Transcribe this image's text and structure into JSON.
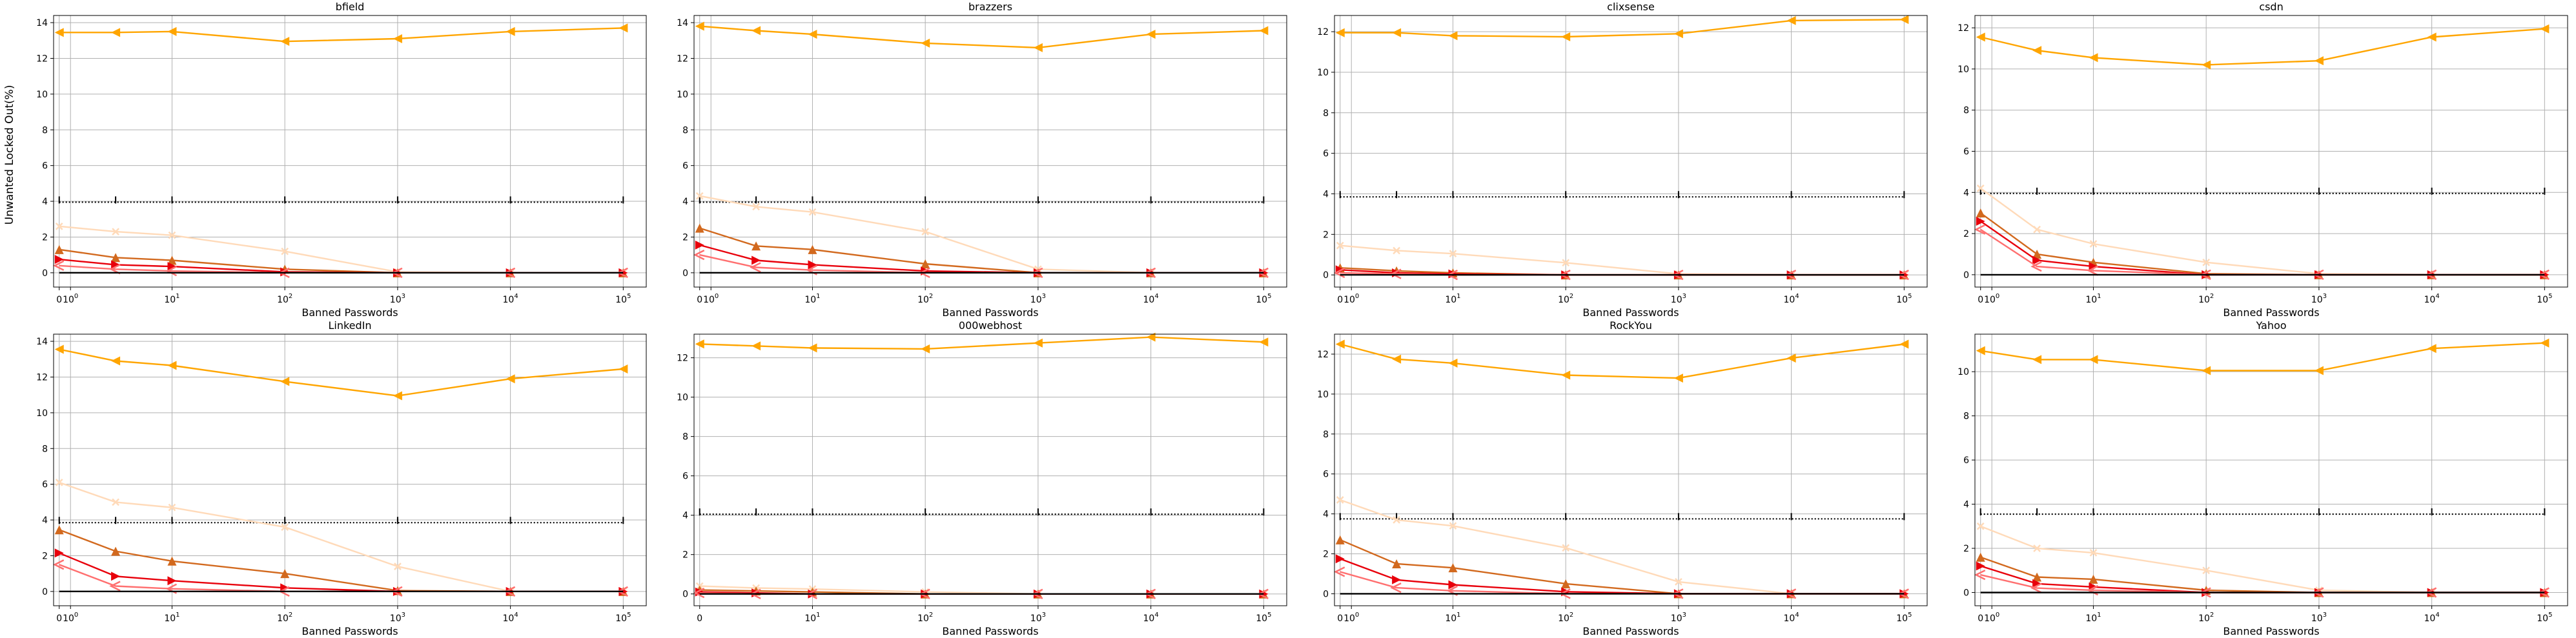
{
  "figure": {
    "ylabel": "Unwanted Locked Out(%)"
  },
  "colors": {
    "black": "#000000",
    "orange": "#ffa500",
    "dark_orange": "#d2691e",
    "red": "#e8000b",
    "light_red": "#ff6f6f",
    "peach": "#ffdab9",
    "grid": "#b0b0b0"
  },
  "chart_data": [
    {
      "type": "line",
      "title": "bfield",
      "xlabel": "Banned Passwords",
      "xscale": "symlog",
      "x": [
        0,
        5,
        10,
        100,
        1000,
        10000,
        100000
      ],
      "xticks": [
        "0",
        "10^0",
        "10^1",
        "10^2",
        "10^3",
        "10^4",
        "10^5"
      ],
      "ylim": [
        -0.8,
        14.4
      ],
      "yticks": [
        0,
        2,
        4,
        6,
        8,
        10,
        12,
        14
      ],
      "grid": true,
      "series": [
        {
          "color": "orange",
          "marker": "left-triangle",
          "values": [
            13.45,
            13.45,
            13.5,
            12.95,
            13.1,
            13.5,
            13.7
          ]
        },
        {
          "color": "black",
          "marker": "tick",
          "style": "dotted",
          "values": [
            3.95,
            3.95,
            3.95,
            3.95,
            3.95,
            3.95,
            3.95
          ]
        },
        {
          "color": "peach",
          "marker": "x",
          "values": [
            2.6,
            2.3,
            2.1,
            1.2,
            0.05,
            0.0,
            0.0
          ]
        },
        {
          "color": "dark_orange",
          "marker": "up-triangle",
          "values": [
            1.3,
            0.85,
            0.7,
            0.2,
            0.0,
            0.0,
            0.0
          ]
        },
        {
          "color": "red",
          "marker": "right-triangle",
          "values": [
            0.75,
            0.45,
            0.35,
            0.05,
            0.0,
            0.0,
            0.0
          ]
        },
        {
          "color": "light_red",
          "marker": "left-caret",
          "values": [
            0.4,
            0.2,
            0.1,
            0.0,
            0.0,
            0.0,
            0.0
          ]
        },
        {
          "color": "black",
          "marker": "none",
          "values": [
            0,
            0,
            0,
            0,
            0,
            0,
            0
          ]
        }
      ]
    },
    {
      "type": "line",
      "title": "brazzers",
      "xlabel": "Banned Passwords",
      "xscale": "symlog",
      "x": [
        0,
        5,
        10,
        100,
        1000,
        10000,
        100000
      ],
      "xticks": [
        "0",
        "10^0",
        "10^1",
        "10^2",
        "10^3",
        "10^4",
        "10^5"
      ],
      "ylim": [
        -0.8,
        14.4
      ],
      "yticks": [
        0,
        2,
        4,
        6,
        8,
        10,
        12,
        14
      ],
      "grid": true,
      "series": [
        {
          "color": "orange",
          "marker": "left-triangle",
          "values": [
            13.8,
            13.55,
            13.35,
            12.85,
            12.6,
            13.35,
            13.55
          ]
        },
        {
          "color": "black",
          "marker": "tick",
          "style": "dotted",
          "values": [
            3.95,
            3.95,
            3.95,
            3.95,
            3.95,
            3.95,
            3.95
          ]
        },
        {
          "color": "peach",
          "marker": "x",
          "values": [
            4.3,
            3.7,
            3.4,
            2.3,
            0.2,
            0.0,
            0.0
          ]
        },
        {
          "color": "dark_orange",
          "marker": "up-triangle",
          "values": [
            2.5,
            1.5,
            1.3,
            0.5,
            0.0,
            0.0,
            0.0
          ]
        },
        {
          "color": "red",
          "marker": "right-triangle",
          "values": [
            1.55,
            0.7,
            0.45,
            0.1,
            0.0,
            0.0,
            0.0
          ]
        },
        {
          "color": "light_red",
          "marker": "left-caret",
          "values": [
            1.0,
            0.3,
            0.15,
            0.0,
            0.0,
            0.0,
            0.0
          ]
        },
        {
          "color": "black",
          "marker": "none",
          "values": [
            0,
            0,
            0,
            0,
            0,
            0,
            0
          ]
        }
      ]
    },
    {
      "type": "line",
      "title": "clixsense",
      "xlabel": "Banned Passwords",
      "xscale": "symlog",
      "x": [
        0,
        5,
        10,
        100,
        1000,
        10000,
        100000
      ],
      "xticks": [
        "0",
        "10^0",
        "10^1",
        "10^2",
        "10^3",
        "10^4",
        "10^5"
      ],
      "ylim": [
        -0.6,
        12.8
      ],
      "yticks": [
        0,
        2,
        4,
        6,
        8,
        10,
        12
      ],
      "grid": true,
      "series": [
        {
          "color": "orange",
          "marker": "left-triangle",
          "values": [
            11.95,
            11.95,
            11.8,
            11.75,
            11.9,
            12.55,
            12.6
          ]
        },
        {
          "color": "black",
          "marker": "tick",
          "style": "dotted",
          "values": [
            3.85,
            3.85,
            3.85,
            3.85,
            3.85,
            3.85,
            3.85
          ]
        },
        {
          "color": "peach",
          "marker": "x",
          "values": [
            1.45,
            1.2,
            1.05,
            0.6,
            0.05,
            0.0,
            0.0
          ]
        },
        {
          "color": "dark_orange",
          "marker": "up-triangle",
          "values": [
            0.35,
            0.2,
            0.1,
            0.0,
            0.0,
            0.0,
            0.0
          ]
        },
        {
          "color": "red",
          "marker": "right-triangle",
          "values": [
            0.25,
            0.1,
            0.05,
            0.0,
            0.0,
            0.0,
            0.0
          ]
        },
        {
          "color": "light_red",
          "marker": "left-caret",
          "values": [
            0.1,
            0.05,
            0.0,
            0.0,
            0.0,
            0.0,
            0.0
          ]
        },
        {
          "color": "black",
          "marker": "none",
          "values": [
            0,
            0,
            0,
            0,
            0,
            0,
            0
          ]
        }
      ]
    },
    {
      "type": "line",
      "title": "csdn",
      "xlabel": "Banned Passwords",
      "xscale": "symlog",
      "x": [
        0,
        5,
        10,
        100,
        1000,
        10000,
        100000
      ],
      "xticks": [
        "0",
        "10^0",
        "10^1",
        "10^2",
        "10^3",
        "10^4",
        "10^5"
      ],
      "ylim": [
        -0.6,
        12.6
      ],
      "yticks": [
        0,
        2,
        4,
        6,
        8,
        10,
        12
      ],
      "grid": true,
      "series": [
        {
          "color": "orange",
          "marker": "left-triangle",
          "values": [
            11.55,
            10.9,
            10.55,
            10.2,
            10.4,
            11.55,
            11.95
          ]
        },
        {
          "color": "black",
          "marker": "tick",
          "style": "dotted",
          "values": [
            3.95,
            3.95,
            3.95,
            3.95,
            3.95,
            3.95,
            3.95
          ]
        },
        {
          "color": "peach",
          "marker": "x",
          "values": [
            4.2,
            2.2,
            1.5,
            0.6,
            0.05,
            0.0,
            0.0
          ]
        },
        {
          "color": "dark_orange",
          "marker": "up-triangle",
          "values": [
            3.0,
            1.0,
            0.6,
            0.05,
            0.0,
            0.0,
            0.0
          ]
        },
        {
          "color": "red",
          "marker": "right-triangle",
          "values": [
            2.6,
            0.7,
            0.4,
            0.0,
            0.0,
            0.0,
            0.0
          ]
        },
        {
          "color": "light_red",
          "marker": "left-caret",
          "values": [
            2.2,
            0.4,
            0.2,
            0.0,
            0.0,
            0.0,
            0.0
          ]
        },
        {
          "color": "black",
          "marker": "none",
          "values": [
            0,
            0,
            0,
            0,
            0,
            0,
            0
          ]
        }
      ]
    },
    {
      "type": "line",
      "title": "LinkedIn",
      "xlabel": "Banned Passwords",
      "xscale": "symlog",
      "x": [
        0,
        5,
        10,
        100,
        1000,
        10000,
        100000
      ],
      "xticks": [
        "0",
        "10^0",
        "10^1",
        "10^2",
        "10^3",
        "10^4",
        "10^5"
      ],
      "ylim": [
        -0.8,
        14.4
      ],
      "yticks": [
        0,
        2,
        4,
        6,
        8,
        10,
        12,
        14
      ],
      "grid": true,
      "series": [
        {
          "color": "orange",
          "marker": "left-triangle",
          "values": [
            13.55,
            12.9,
            12.65,
            11.75,
            10.95,
            11.9,
            12.45
          ]
        },
        {
          "color": "black",
          "marker": "tick",
          "style": "dotted",
          "values": [
            3.85,
            3.85,
            3.85,
            3.85,
            3.85,
            3.85,
            3.85
          ]
        },
        {
          "color": "peach",
          "marker": "x",
          "values": [
            6.1,
            5.0,
            4.7,
            3.6,
            1.4,
            0.0,
            0.0
          ]
        },
        {
          "color": "dark_orange",
          "marker": "up-triangle",
          "values": [
            3.45,
            2.25,
            1.7,
            1.0,
            0.05,
            0.0,
            0.0
          ]
        },
        {
          "color": "red",
          "marker": "right-triangle",
          "values": [
            2.15,
            0.85,
            0.6,
            0.2,
            0.0,
            0.0,
            0.0
          ]
        },
        {
          "color": "light_red",
          "marker": "left-caret",
          "values": [
            1.5,
            0.3,
            0.15,
            0.0,
            0.0,
            0.0,
            0.0
          ]
        },
        {
          "color": "black",
          "marker": "none",
          "values": [
            0,
            0,
            0,
            0,
            0,
            0,
            0
          ]
        }
      ]
    },
    {
      "type": "line",
      "title": "000webhost",
      "xlabel": "Banned Passwords",
      "xscale": "symlog",
      "x": [
        0,
        5,
        10,
        100,
        1000,
        10000,
        100000
      ],
      "xticks": [
        "0",
        "10^1",
        "10^2",
        "10^3",
        "10^4",
        "10^5"
      ],
      "ylim": [
        -0.6,
        13.2
      ],
      "yticks": [
        0,
        2,
        4,
        6,
        8,
        10,
        12
      ],
      "grid": true,
      "series": [
        {
          "color": "orange",
          "marker": "left-triangle",
          "values": [
            12.7,
            12.6,
            12.5,
            12.45,
            12.75,
            13.05,
            12.8
          ]
        },
        {
          "color": "black",
          "marker": "tick",
          "style": "dotted",
          "values": [
            4.05,
            4.05,
            4.05,
            4.05,
            4.05,
            4.05,
            4.05
          ]
        },
        {
          "color": "peach",
          "marker": "x",
          "values": [
            0.4,
            0.3,
            0.25,
            0.1,
            0.0,
            0.0,
            0.0
          ]
        },
        {
          "color": "dark_orange",
          "marker": "up-triangle",
          "values": [
            0.2,
            0.15,
            0.1,
            0.0,
            0.0,
            0.0,
            0.0
          ]
        },
        {
          "color": "red",
          "marker": "right-triangle",
          "values": [
            0.1,
            0.05,
            0.0,
            0.0,
            0.0,
            0.0,
            0.0
          ]
        },
        {
          "color": "light_red",
          "marker": "left-caret",
          "values": [
            0.05,
            0.0,
            0.0,
            0.0,
            0.0,
            0.0,
            0.0
          ]
        },
        {
          "color": "black",
          "marker": "none",
          "values": [
            0,
            0,
            0,
            0,
            0,
            0,
            0
          ]
        }
      ]
    },
    {
      "type": "line",
      "title": "RockYou",
      "xlabel": "Banned Passwords",
      "xscale": "symlog",
      "x": [
        0,
        5,
        10,
        100,
        1000,
        10000,
        100000
      ],
      "xticks": [
        "0",
        "10^0",
        "10^1",
        "10^2",
        "10^3",
        "10^4",
        "10^5"
      ],
      "ylim": [
        -0.6,
        13.0
      ],
      "yticks": [
        0,
        2,
        4,
        6,
        8,
        10,
        12
      ],
      "grid": true,
      "series": [
        {
          "color": "orange",
          "marker": "left-triangle",
          "values": [
            12.5,
            11.75,
            11.55,
            10.95,
            10.8,
            11.8,
            12.5
          ]
        },
        {
          "color": "black",
          "marker": "tick",
          "style": "dotted",
          "values": [
            3.75,
            3.75,
            3.75,
            3.75,
            3.75,
            3.75,
            3.75
          ]
        },
        {
          "color": "peach",
          "marker": "x",
          "values": [
            4.7,
            3.7,
            3.4,
            2.3,
            0.6,
            0.0,
            0.0
          ]
        },
        {
          "color": "dark_orange",
          "marker": "up-triangle",
          "values": [
            2.7,
            1.5,
            1.3,
            0.5,
            0.0,
            0.0,
            0.0
          ]
        },
        {
          "color": "red",
          "marker": "right-triangle",
          "values": [
            1.75,
            0.7,
            0.45,
            0.1,
            0.0,
            0.0,
            0.0
          ]
        },
        {
          "color": "light_red",
          "marker": "left-caret",
          "values": [
            1.1,
            0.3,
            0.15,
            0.0,
            0.0,
            0.0,
            0.0
          ]
        },
        {
          "color": "black",
          "marker": "none",
          "values": [
            0,
            0,
            0,
            0,
            0,
            0,
            0
          ]
        }
      ]
    },
    {
      "type": "line",
      "title": "Yahoo",
      "xlabel": "Banned Passwords",
      "xscale": "symlog",
      "x": [
        0,
        5,
        10,
        100,
        1000,
        10000,
        100000
      ],
      "xticks": [
        "0",
        "10^0",
        "10^1",
        "10^2",
        "10^3",
        "10^4",
        "10^5"
      ],
      "ylim": [
        -0.6,
        11.7
      ],
      "yticks": [
        0,
        2,
        4,
        6,
        8,
        10
      ],
      "grid": true,
      "series": [
        {
          "color": "orange",
          "marker": "left-triangle",
          "values": [
            10.95,
            10.55,
            10.55,
            10.05,
            10.05,
            11.05,
            11.3
          ]
        },
        {
          "color": "black",
          "marker": "tick",
          "style": "dotted",
          "values": [
            3.55,
            3.55,
            3.55,
            3.55,
            3.55,
            3.55,
            3.55
          ]
        },
        {
          "color": "peach",
          "marker": "x",
          "values": [
            3.0,
            2.0,
            1.8,
            1.0,
            0.1,
            0.0,
            0.0
          ]
        },
        {
          "color": "dark_orange",
          "marker": "up-triangle",
          "values": [
            1.6,
            0.7,
            0.6,
            0.1,
            0.0,
            0.0,
            0.0
          ]
        },
        {
          "color": "red",
          "marker": "right-triangle",
          "values": [
            1.2,
            0.4,
            0.25,
            0.0,
            0.0,
            0.0,
            0.0
          ]
        },
        {
          "color": "light_red",
          "marker": "left-caret",
          "values": [
            0.8,
            0.2,
            0.1,
            0.0,
            0.0,
            0.0,
            0.0
          ]
        },
        {
          "color": "black",
          "marker": "none",
          "values": [
            0,
            0,
            0,
            0,
            0,
            0,
            0
          ]
        }
      ]
    }
  ]
}
